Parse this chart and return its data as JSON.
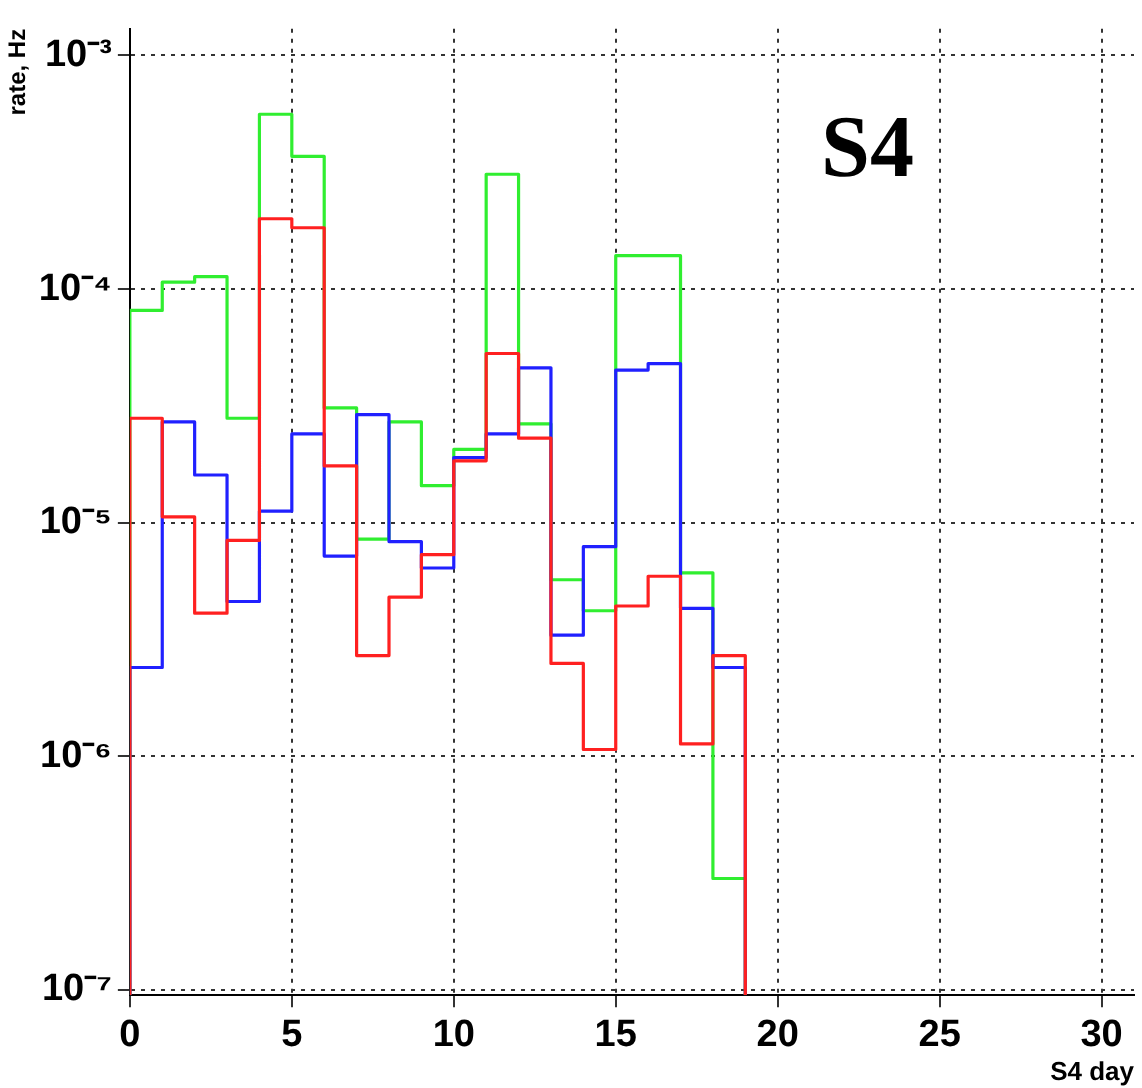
{
  "chart_data": {
    "type": "histogram",
    "xlabel": "S4 day",
    "ylabel": "rate, Hz",
    "annotations": [
      "S4"
    ],
    "bins": [
      0,
      1,
      2,
      3,
      4,
      5,
      6,
      7,
      8,
      9,
      10,
      11,
      12,
      13,
      14,
      15,
      16,
      17,
      18,
      19
    ],
    "series": [
      {
        "color": "#ff2020",
        "values": [
          2.8e-05,
          1.06e-05,
          4.1e-06,
          8.4e-06,
          0.0002,
          0.000183,
          1.75e-05,
          2.7e-06,
          4.8e-06,
          7.3e-06,
          1.84e-05,
          5.3e-05,
          2.3e-05,
          2.5e-06,
          1.07e-06,
          4.4e-06,
          5.9e-06,
          1.13e-06,
          2.7e-06
        ]
      },
      {
        "color": "#2020ff",
        "values": [
          2.4e-06,
          2.7e-05,
          1.6e-05,
          4.6e-06,
          1.12e-05,
          2.4e-05,
          7.2e-06,
          2.9e-05,
          8.3e-06,
          6.4e-06,
          1.9e-05,
          2.4e-05,
          4.6e-05,
          3.3e-06,
          7.9e-06,
          4.5e-05,
          4.8e-05,
          4.3e-06,
          2.4e-06
        ]
      },
      {
        "color": "#30ee30",
        "values": [
          8.1e-05,
          0.000107,
          0.000113,
          2.8e-05,
          0.00056,
          0.00037,
          3.1e-05,
          8.5e-06,
          2.7e-05,
          1.44e-05,
          2.06e-05,
          0.00031,
          2.65e-05,
          5.7e-06,
          4.2e-06,
          0.000139,
          0.000139,
          6.1e-06,
          3e-07
        ]
      }
    ],
    "log": "y",
    "xlim": [
      0,
      31
    ],
    "xticks": [
      0,
      5,
      10,
      15,
      20,
      25,
      30
    ],
    "ylim": [
      9.5e-08,
      0.0013
    ],
    "yticks": [
      {
        "value": 1e-07,
        "label": "10⁻⁷"
      },
      {
        "value": 1e-06,
        "label": "10⁻⁶"
      },
      {
        "value": 1e-05,
        "label": "10⁻⁵"
      },
      {
        "value": 0.0001,
        "label": "10⁻⁴"
      },
      {
        "value": 0.001,
        "label": "10⁻³"
      }
    ],
    "grid": true,
    "legend": false
  }
}
